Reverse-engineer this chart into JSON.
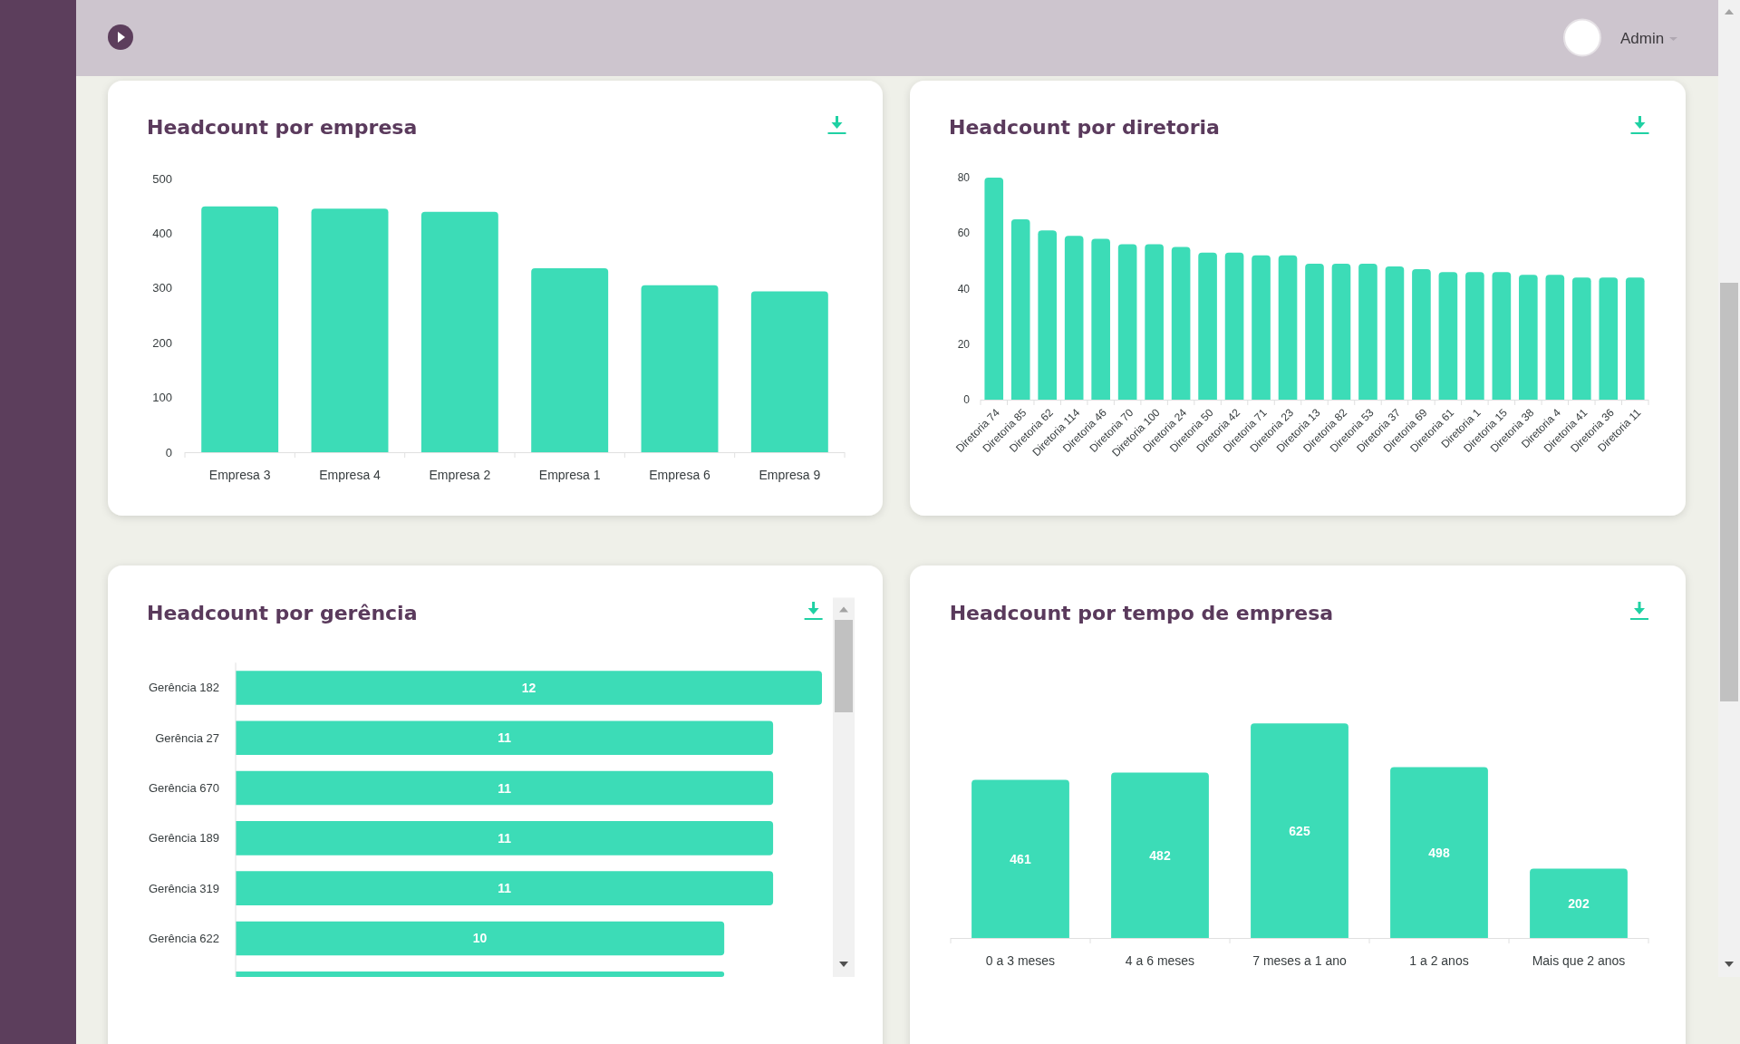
{
  "chart_data": [
    {
      "type": "bar",
      "title": "Headcount por empresa",
      "categories": [
        "Empresa 3",
        "Empresa 4",
        "Empresa 2",
        "Empresa 1",
        "Empresa 6",
        "Empresa 9"
      ],
      "values": [
        449,
        445,
        439,
        336,
        305,
        294
      ],
      "color": "#3cdcb7",
      "ylim": [
        0,
        500
      ],
      "yticks": [
        0,
        100,
        200,
        300,
        400,
        500
      ],
      "annotations": [
        "Admin"
      ]
    },
    {
      "type": "bar",
      "title": "Headcount por diretoria",
      "categories": [
        "Diretoria 74",
        "Diretoria 85",
        "Diretoria 62",
        "Diretoria 114",
        "Diretoria 46",
        "Diretoria 70",
        "Diretoria 100",
        "Diretoria 24",
        "Diretoria 50",
        "Diretoria 42",
        "Diretoria 71",
        "Diretoria 23",
        "Diretoria 13",
        "Diretoria 82",
        "Diretoria 53",
        "Diretoria 37",
        "Diretoria 69",
        "Diretoria 61",
        "Diretoria 1",
        "Diretoria 15",
        "Diretoria 38",
        "Diretoria 4",
        "Diretoria 41",
        "Diretoria 36",
        "Diretoria 11"
      ],
      "values": [
        80,
        65,
        61,
        59,
        58,
        56,
        56,
        55,
        53,
        53,
        52,
        52,
        49,
        49,
        49,
        48,
        47,
        46,
        46,
        46,
        45,
        45,
        44,
        44,
        44
      ],
      "color": "#3cdcb7",
      "ylim": [
        0,
        80
      ],
      "yticks": [
        0,
        20,
        40,
        60,
        80
      ]
    },
    {
      "type": "bar",
      "orientation": "horizontal",
      "title": "Headcount por gerência",
      "categories": [
        "Gerência 182",
        "Gerência 27",
        "Gerência 670",
        "Gerência 189",
        "Gerência 319",
        "Gerência 622",
        null
      ],
      "values": [
        12,
        11,
        11,
        11,
        11,
        10,
        10
      ],
      "value_labels": [
        "12",
        "11",
        "11",
        "11",
        "11",
        "10",
        null
      ],
      "color": "#3cdcb7",
      "tick_labels": "y"
    },
    {
      "type": "bar",
      "title": "Headcount por tempo de empresa",
      "categories": [
        "0 a 3 meses",
        "4 a 6 meses",
        "7 meses a 1 ano",
        "1 a 2 anos",
        "Mais que 2 anos"
      ],
      "values": [
        461,
        482,
        625,
        498,
        202
      ],
      "color": "#3cdcb7",
      "data_labels": true,
      "tick_labels": "x"
    }
  ]
}
